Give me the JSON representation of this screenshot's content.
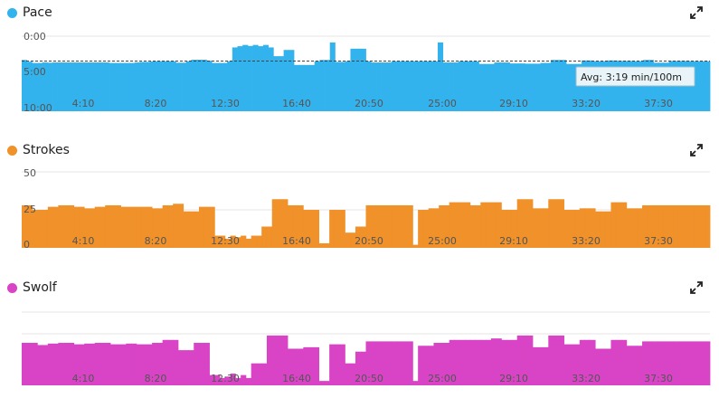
{
  "chart_data": [
    {
      "type": "area",
      "title": "Pace",
      "color": "#33b3ee",
      "x_tick_labels": [
        "4:10",
        "8:20",
        "12:30",
        "16:40",
        "20:50",
        "25:00",
        "29:10",
        "33:20",
        "37:30"
      ],
      "y_tick_labels": [
        "0:00",
        "5:00",
        "10:00"
      ],
      "ylim_seconds": [
        0,
        600
      ],
      "y_inverted": true,
      "average_label": "Avg: 3:19 min/100m",
      "average_seconds": 199,
      "grid": true,
      "values_seconds": [
        190,
        204,
        214,
        214,
        210,
        212,
        210,
        210,
        210,
        210,
        210,
        210,
        210,
        210,
        210,
        210,
        210,
        214,
        214,
        214,
        214,
        214,
        210,
        206,
        206,
        202,
        200,
        200,
        200,
        200,
        212,
        212,
        200,
        188,
        188,
        188,
        196,
        214,
        214,
        214,
        200,
        90,
        80,
        70,
        78,
        70,
        80,
        70,
        90,
        160,
        160,
        110,
        110,
        230,
        230,
        230,
        230,
        200,
        190,
        190,
        50,
        206,
        206,
        200,
        100,
        100,
        100,
        200,
        210,
        210,
        210,
        210,
        200,
        200,
        200,
        200,
        200,
        200,
        200,
        200,
        200,
        50,
        210,
        210,
        210,
        200,
        200,
        200,
        200,
        222,
        222,
        222,
        210,
        210,
        210,
        218,
        218,
        218,
        220,
        220,
        220,
        214,
        214,
        190,
        190,
        190,
        222,
        222,
        222,
        194,
        194,
        200,
        200,
        200,
        194,
        194,
        198,
        198,
        198,
        200,
        200,
        190,
        190,
        212,
        212,
        212,
        198,
        198,
        198,
        198,
        200,
        200,
        200,
        200
      ]
    },
    {
      "type": "area",
      "title": "Strokes",
      "color": "#f0912a",
      "x_tick_labels": [
        "4:10",
        "8:20",
        "12:30",
        "16:40",
        "20:50",
        "25:00",
        "29:10",
        "33:20",
        "37:30"
      ],
      "y_tick_labels": [
        "50",
        "25",
        "0"
      ],
      "ylim": [
        0,
        50
      ],
      "grid": true,
      "values": [
        28,
        28,
        25,
        25,
        25,
        27,
        27,
        28,
        28,
        28,
        27,
        27,
        26,
        26,
        27,
        27,
        28,
        28,
        28,
        27,
        27,
        27,
        27,
        27,
        27,
        26,
        26,
        28,
        28,
        29,
        29,
        24,
        24,
        24,
        27,
        27,
        27,
        8,
        8,
        6,
        8,
        7,
        8,
        6,
        8,
        8,
        14,
        14,
        32,
        32,
        32,
        28,
        28,
        28,
        25,
        25,
        25,
        3,
        3,
        25,
        25,
        25,
        10,
        10,
        14,
        14,
        28,
        28,
        28,
        28,
        28,
        28,
        28,
        28,
        28,
        2,
        25,
        25,
        26,
        26,
        28,
        28,
        30,
        30,
        30,
        30,
        28,
        28,
        30,
        30,
        30,
        30,
        25,
        25,
        25,
        32,
        32,
        32,
        26,
        26,
        26,
        32,
        32,
        32,
        25,
        25,
        25,
        26,
        26,
        26,
        24,
        24,
        24,
        30,
        30,
        30,
        26,
        26,
        26,
        28,
        28,
        28,
        28,
        28,
        28,
        28,
        28,
        28,
        28,
        28,
        28,
        28
      ]
    },
    {
      "type": "area",
      "title": "Swolf",
      "color": "#d844c5",
      "x_tick_labels": [
        "4:10",
        "8:20",
        "12:30",
        "16:40",
        "20:50",
        "25:00",
        "29:10",
        "33:20",
        "37:30"
      ],
      "grid": true,
      "values_relative": [
        0.58,
        0.58,
        0.58,
        0.55,
        0.55,
        0.57,
        0.57,
        0.58,
        0.58,
        0.58,
        0.56,
        0.56,
        0.57,
        0.57,
        0.58,
        0.58,
        0.58,
        0.56,
        0.56,
        0.56,
        0.57,
        0.57,
        0.56,
        0.56,
        0.56,
        0.58,
        0.58,
        0.62,
        0.62,
        0.62,
        0.48,
        0.48,
        0.48,
        0.58,
        0.58,
        0.58,
        0.14,
        0.14,
        0.1,
        0.12,
        0.16,
        0.1,
        0.14,
        0.1,
        0.3,
        0.3,
        0.3,
        0.68,
        0.68,
        0.68,
        0.68,
        0.5,
        0.5,
        0.5,
        0.52,
        0.52,
        0.52,
        0.06,
        0.06,
        0.56,
        0.56,
        0.56,
        0.3,
        0.3,
        0.46,
        0.46,
        0.6,
        0.6,
        0.6,
        0.6,
        0.6,
        0.6,
        0.6,
        0.6,
        0.6,
        0.06,
        0.54,
        0.54,
        0.54,
        0.58,
        0.58,
        0.58,
        0.62,
        0.62,
        0.62,
        0.62,
        0.62,
        0.62,
        0.62,
        0.62,
        0.64,
        0.64,
        0.62,
        0.62,
        0.62,
        0.68,
        0.68,
        0.68,
        0.52,
        0.52,
        0.52,
        0.68,
        0.68,
        0.68,
        0.56,
        0.56,
        0.56,
        0.62,
        0.62,
        0.62,
        0.5,
        0.5,
        0.5,
        0.62,
        0.62,
        0.62,
        0.54,
        0.54,
        0.54,
        0.6,
        0.6,
        0.6,
        0.6,
        0.6,
        0.6,
        0.6,
        0.6,
        0.6,
        0.6,
        0.6,
        0.6,
        0.6
      ]
    }
  ]
}
